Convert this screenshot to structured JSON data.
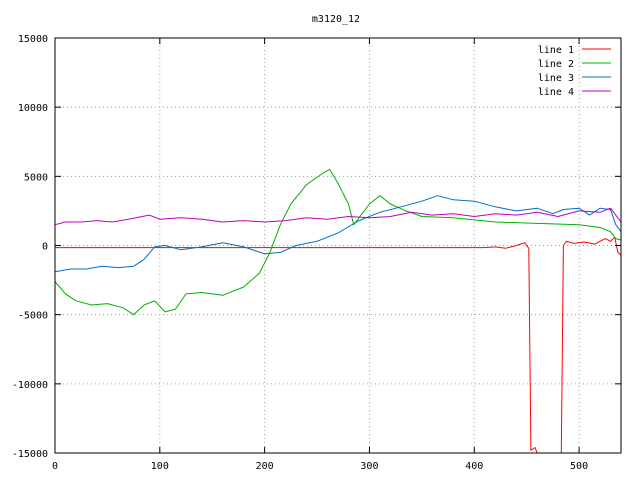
{
  "chart_data": {
    "type": "line",
    "title": "m3120_12",
    "xlabel": "",
    "ylabel": "",
    "xlim": [
      0,
      540
    ],
    "ylim": [
      -15000,
      15000
    ],
    "xticks": [
      0,
      100,
      200,
      300,
      400,
      500
    ],
    "yticks": [
      -15000,
      -10000,
      -5000,
      0,
      5000,
      10000,
      15000
    ],
    "grid": true,
    "legend_position": "top-right",
    "series": [
      {
        "name": "line 1",
        "color": "#ff0000",
        "points": [
          [
            0,
            -150
          ],
          [
            100,
            -150
          ],
          [
            200,
            -150
          ],
          [
            300,
            -150
          ],
          [
            410,
            -150
          ],
          [
            420,
            -100
          ],
          [
            430,
            -200
          ],
          [
            440,
            0
          ],
          [
            448,
            200
          ],
          [
            452,
            -200
          ],
          [
            454,
            -14800
          ],
          [
            458,
            -14600
          ],
          [
            460,
            -15000
          ],
          [
            483,
            -15000
          ],
          [
            485,
            0
          ],
          [
            488,
            300
          ],
          [
            495,
            150
          ],
          [
            505,
            250
          ],
          [
            515,
            100
          ],
          [
            525,
            500
          ],
          [
            530,
            300
          ],
          [
            534,
            600
          ],
          [
            537,
            -500
          ],
          [
            540,
            -700
          ]
        ]
      },
      {
        "name": "line 2",
        "color": "#00b000",
        "points": [
          [
            0,
            -2600
          ],
          [
            10,
            -3500
          ],
          [
            20,
            -4000
          ],
          [
            35,
            -4300
          ],
          [
            50,
            -4200
          ],
          [
            65,
            -4500
          ],
          [
            75,
            -5000
          ],
          [
            85,
            -4300
          ],
          [
            95,
            -4000
          ],
          [
            105,
            -4800
          ],
          [
            115,
            -4600
          ],
          [
            125,
            -3500
          ],
          [
            140,
            -3400
          ],
          [
            160,
            -3600
          ],
          [
            180,
            -3000
          ],
          [
            195,
            -2000
          ],
          [
            205,
            -500
          ],
          [
            215,
            1500
          ],
          [
            225,
            3000
          ],
          [
            240,
            4400
          ],
          [
            255,
            5200
          ],
          [
            262,
            5500
          ],
          [
            270,
            4500
          ],
          [
            280,
            3000
          ],
          [
            285,
            1500
          ],
          [
            290,
            2000
          ],
          [
            300,
            3000
          ],
          [
            310,
            3600
          ],
          [
            320,
            3000
          ],
          [
            335,
            2500
          ],
          [
            350,
            2100
          ],
          [
            380,
            2000
          ],
          [
            420,
            1700
          ],
          [
            460,
            1600
          ],
          [
            500,
            1500
          ],
          [
            520,
            1300
          ],
          [
            530,
            1000
          ],
          [
            535,
            500
          ],
          [
            540,
            400
          ]
        ]
      },
      {
        "name": "line 3",
        "color": "#0070c8",
        "points": [
          [
            0,
            -1900
          ],
          [
            15,
            -1700
          ],
          [
            30,
            -1700
          ],
          [
            45,
            -1500
          ],
          [
            60,
            -1600
          ],
          [
            75,
            -1500
          ],
          [
            85,
            -1000
          ],
          [
            95,
            -100
          ],
          [
            105,
            0
          ],
          [
            120,
            -300
          ],
          [
            140,
            -100
          ],
          [
            160,
            200
          ],
          [
            180,
            -100
          ],
          [
            200,
            -600
          ],
          [
            215,
            -500
          ],
          [
            230,
            0
          ],
          [
            250,
            300
          ],
          [
            270,
            900
          ],
          [
            290,
            1800
          ],
          [
            310,
            2400
          ],
          [
            330,
            2800
          ],
          [
            350,
            3200
          ],
          [
            365,
            3600
          ],
          [
            380,
            3300
          ],
          [
            400,
            3200
          ],
          [
            420,
            2800
          ],
          [
            440,
            2500
          ],
          [
            460,
            2700
          ],
          [
            475,
            2300
          ],
          [
            485,
            2600
          ],
          [
            500,
            2700
          ],
          [
            510,
            2200
          ],
          [
            520,
            2700
          ],
          [
            530,
            2600
          ],
          [
            535,
            1500
          ],
          [
            540,
            1000
          ]
        ]
      },
      {
        "name": "line 4",
        "color": "#c000c0",
        "points": [
          [
            0,
            1500
          ],
          [
            10,
            1700
          ],
          [
            25,
            1700
          ],
          [
            40,
            1800
          ],
          [
            55,
            1700
          ],
          [
            70,
            1900
          ],
          [
            90,
            2200
          ],
          [
            100,
            1900
          ],
          [
            120,
            2000
          ],
          [
            140,
            1900
          ],
          [
            160,
            1700
          ],
          [
            180,
            1800
          ],
          [
            200,
            1700
          ],
          [
            220,
            1800
          ],
          [
            240,
            2000
          ],
          [
            260,
            1900
          ],
          [
            280,
            2100
          ],
          [
            300,
            2000
          ],
          [
            320,
            2100
          ],
          [
            340,
            2400
          ],
          [
            360,
            2200
          ],
          [
            380,
            2300
          ],
          [
            400,
            2100
          ],
          [
            420,
            2300
          ],
          [
            440,
            2200
          ],
          [
            460,
            2400
          ],
          [
            480,
            2100
          ],
          [
            500,
            2500
          ],
          [
            520,
            2400
          ],
          [
            530,
            2700
          ],
          [
            540,
            1700
          ]
        ]
      }
    ]
  }
}
